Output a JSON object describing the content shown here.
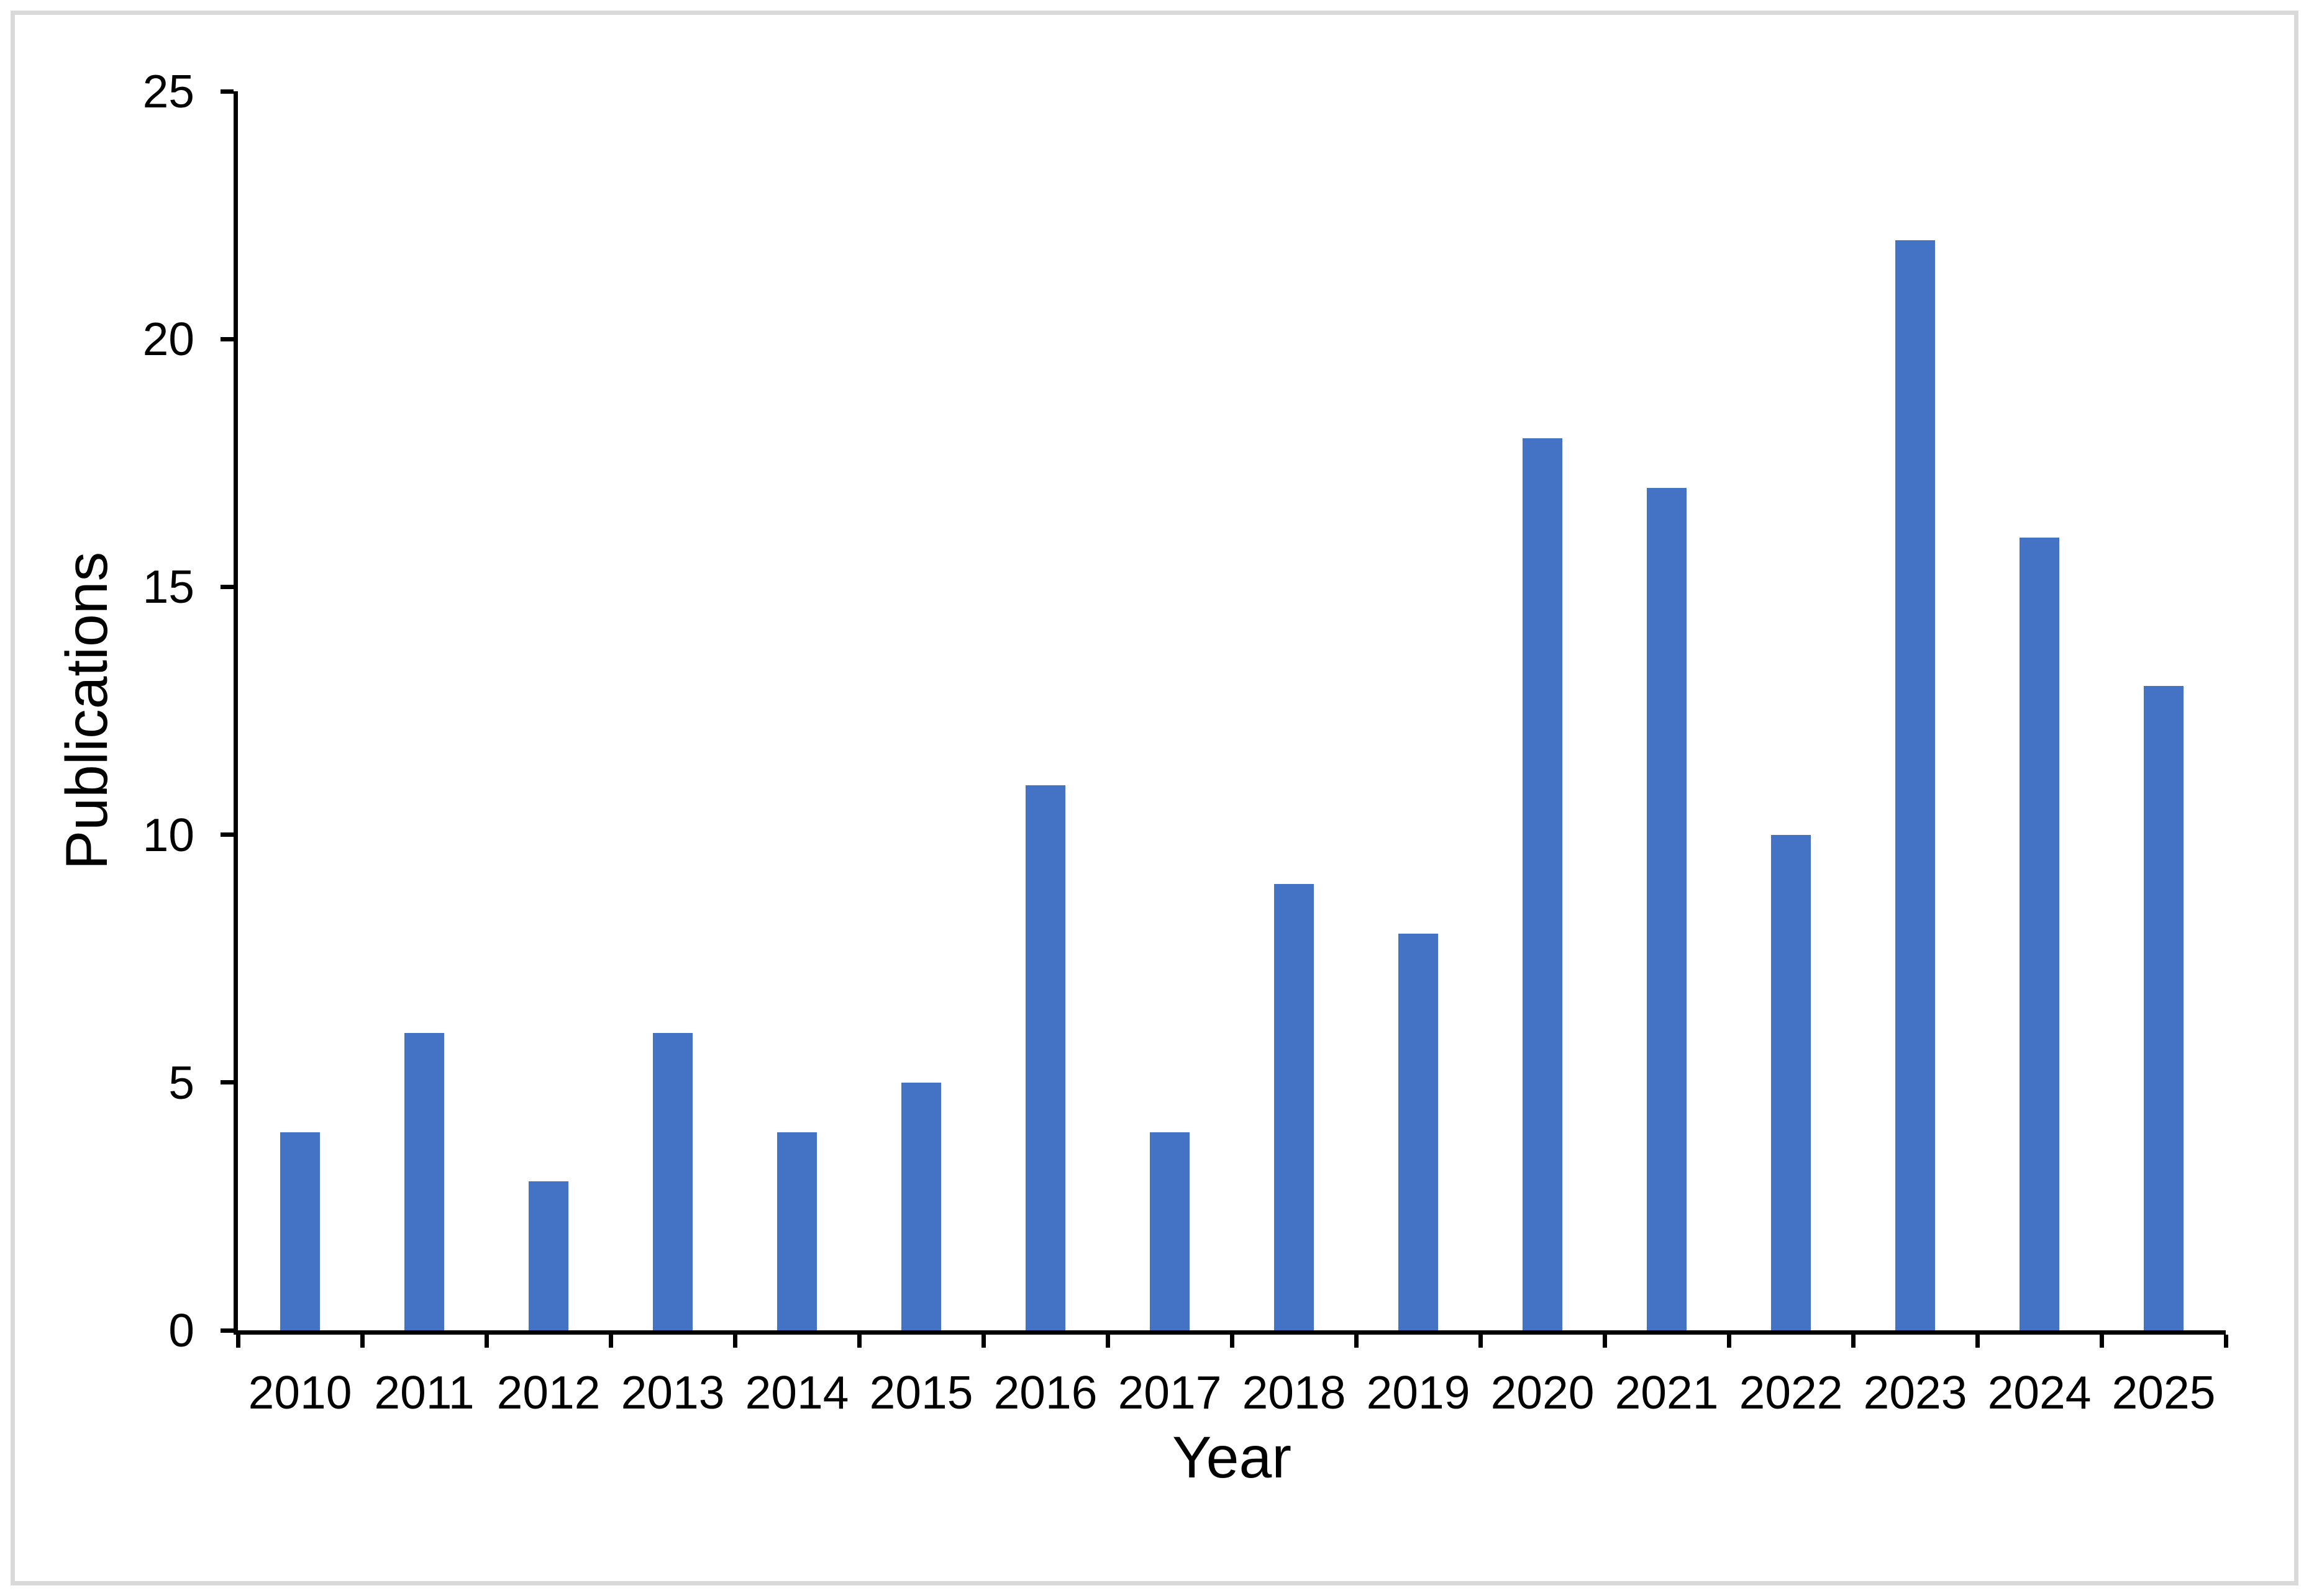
{
  "chart_data": {
    "type": "bar",
    "title": "",
    "xlabel": "Year",
    "ylabel": "Publications",
    "categories": [
      "2010",
      "2011",
      "2012",
      "2013",
      "2014",
      "2015",
      "2016",
      "2017",
      "2018",
      "2019",
      "2020",
      "2021",
      "2022",
      "2023",
      "2024",
      "2025"
    ],
    "values": [
      4,
      6,
      3,
      6,
      4,
      5,
      11,
      4,
      9,
      8,
      18,
      17,
      10,
      22,
      16,
      13
    ],
    "ylim": [
      0,
      25
    ],
    "yticks": [
      0,
      5,
      10,
      15,
      20,
      25
    ],
    "grid": false,
    "legend": "none",
    "bar_color": "#4472C4",
    "axis_color": "#000000",
    "frame_border_color": "#D9D9D9",
    "background_color": "#FFFFFF"
  }
}
